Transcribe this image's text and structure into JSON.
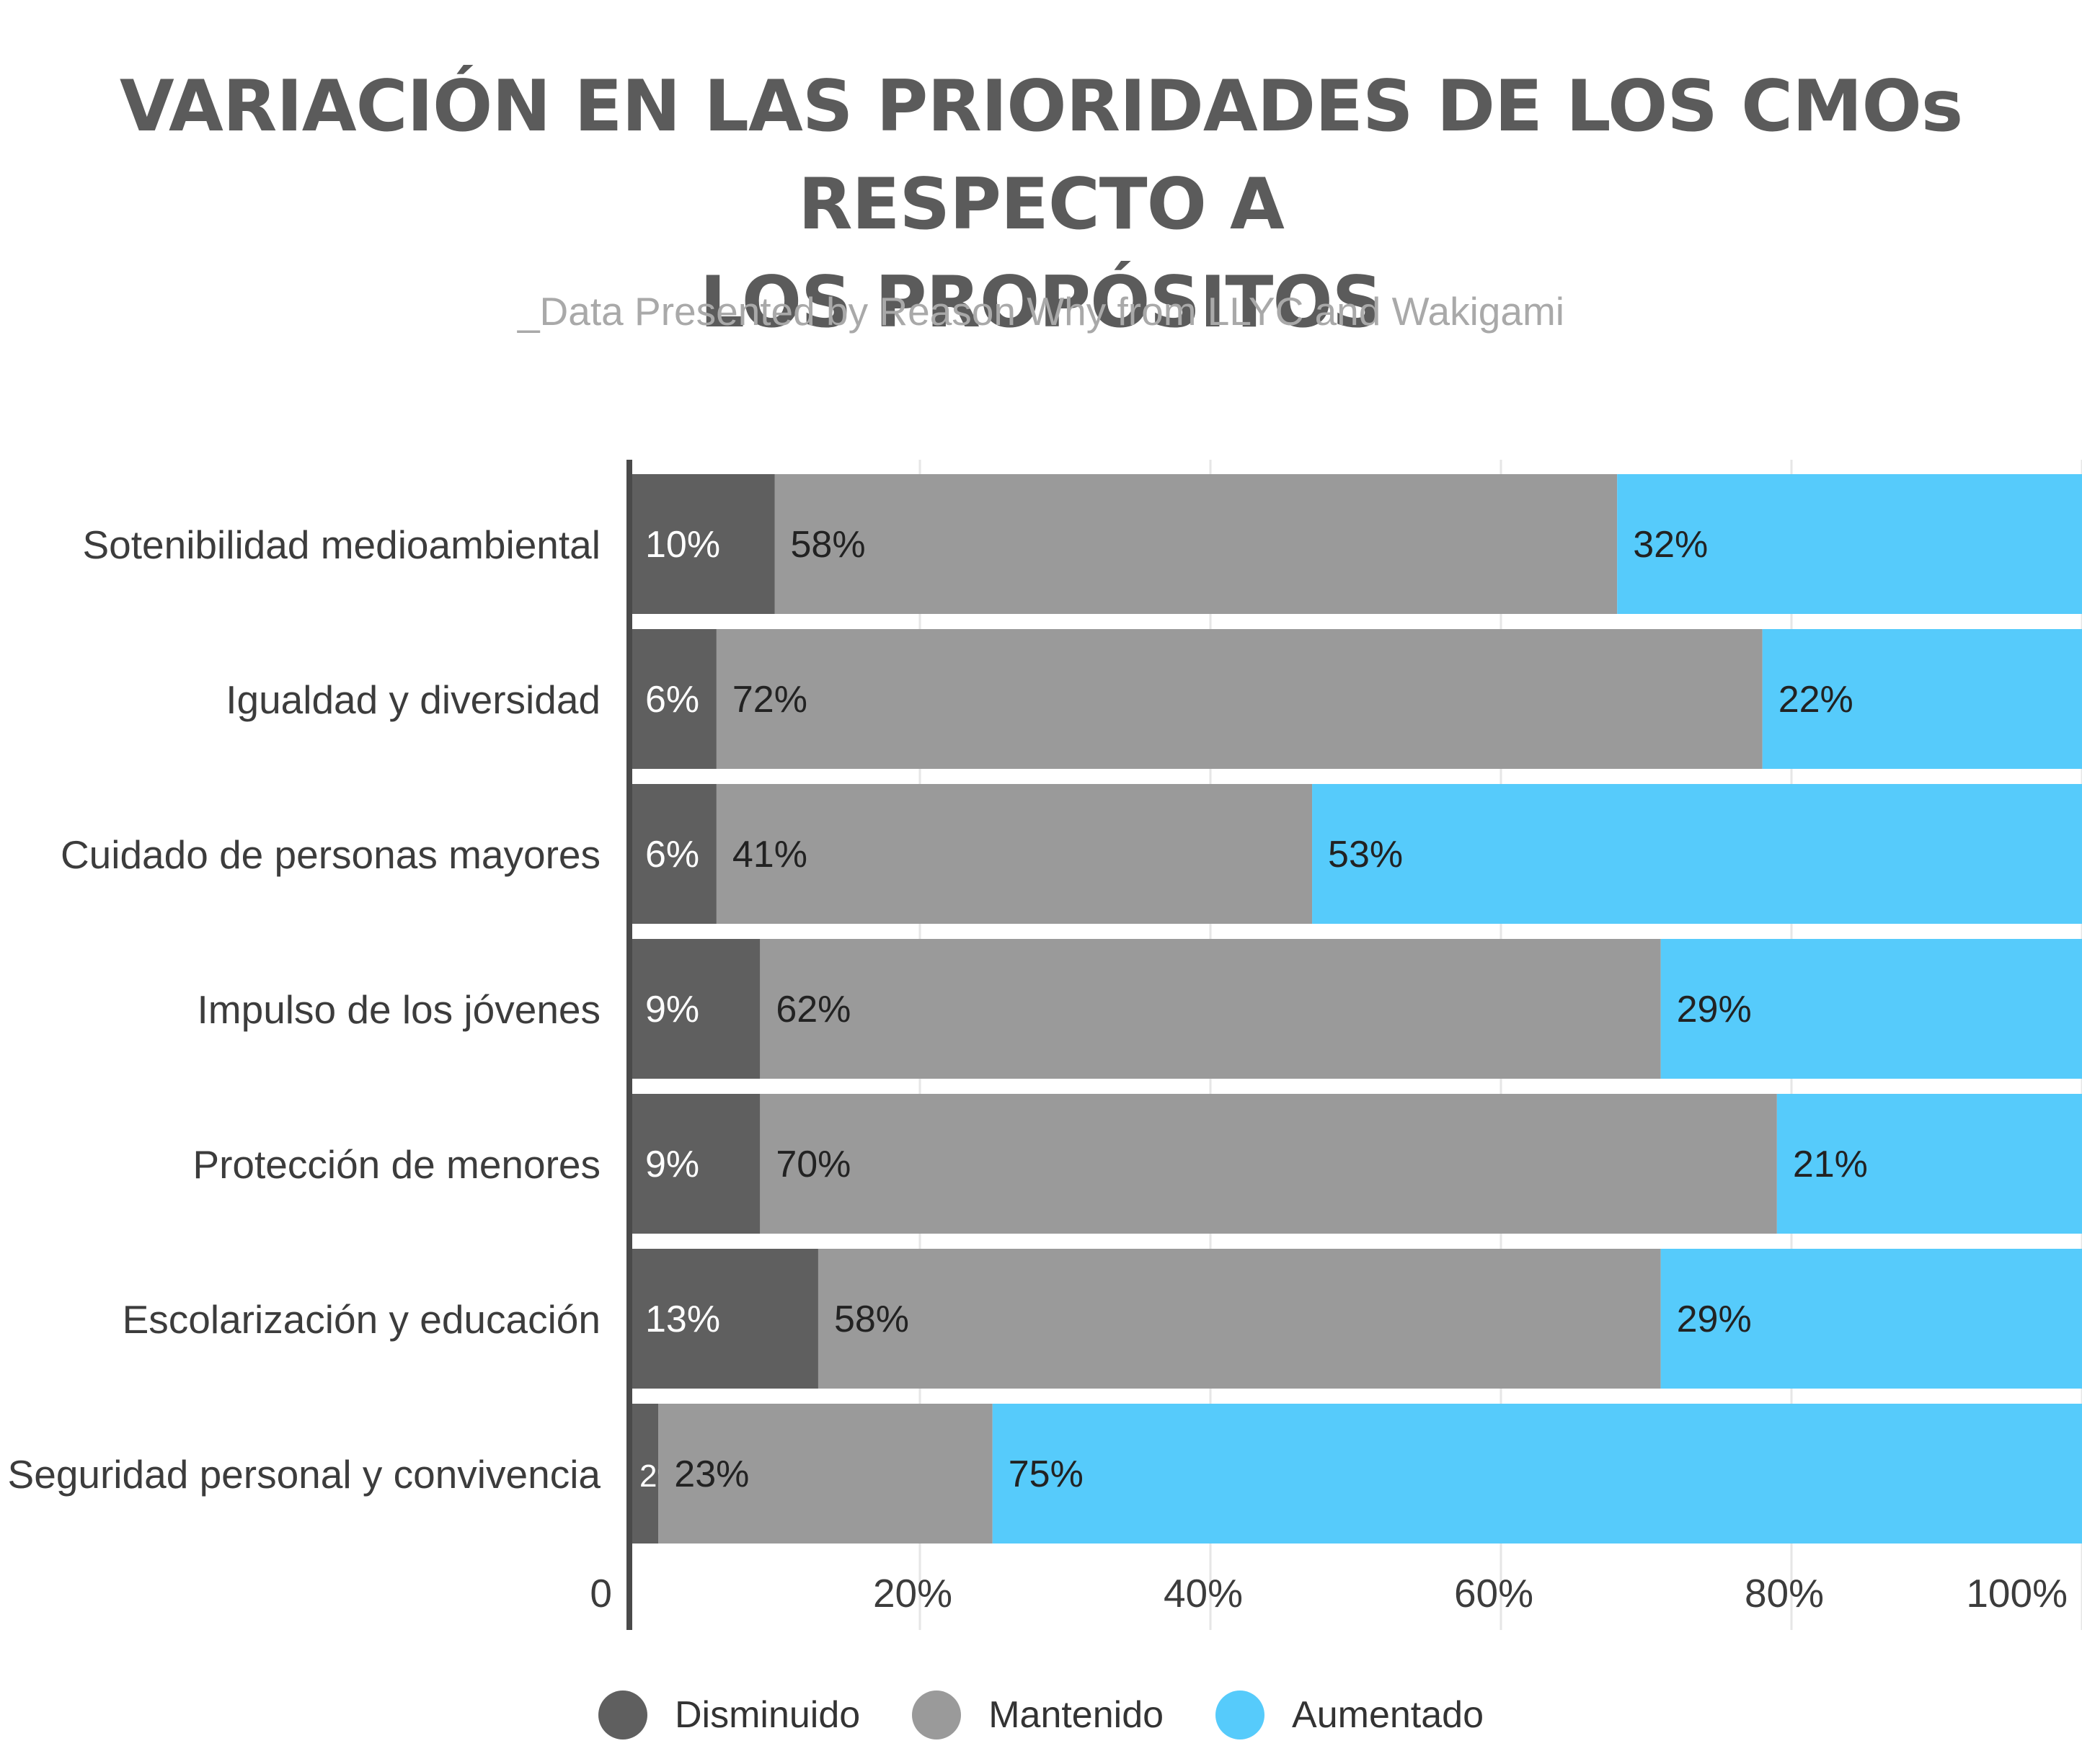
{
  "header": {
    "title_line1": "VARIACIÓN EN LAS PRIORIDADES DE LOS CMOs RESPECTO A",
    "title_line2": "LOS PROPÓSITOS",
    "subtitle": "_Data Presented by Reason Why from LLYC and Wakigami"
  },
  "colors": {
    "disminuido": "#5f5f5f",
    "mantenido": "#9a9a9a",
    "aumentado": "#56cbfb",
    "grid": "#e6e6e6",
    "axis": "#4a4a4a"
  },
  "chart_data": {
    "type": "bar",
    "orientation": "horizontal",
    "stacked": true,
    "categories": [
      "Sotenibilidad medioambiental",
      "Igualdad y diversidad",
      "Cuidado de personas mayores",
      "Impulso de los jóvenes",
      "Protección de menores",
      "Escolarización y educación",
      "Seguridad personal y convivencia"
    ],
    "series": [
      {
        "name": "Disminuido",
        "values": [
          10,
          6,
          6,
          9,
          9,
          13,
          2
        ],
        "labels": [
          "10%",
          "6%",
          "6%",
          "9%",
          "9%",
          "13%",
          "2%"
        ],
        "color": "#5f5f5f"
      },
      {
        "name": "Mantenido",
        "values": [
          58,
          72,
          41,
          62,
          70,
          58,
          23
        ],
        "labels": [
          "58%",
          "72%",
          "41%",
          "62%",
          "70%",
          "58%",
          "23%"
        ],
        "color": "#9a9a9a"
      },
      {
        "name": "Aumentado",
        "values": [
          32,
          22,
          53,
          29,
          21,
          29,
          75
        ],
        "labels": [
          "32%",
          "22%",
          "53%",
          "29%",
          "21%",
          "29%",
          "75%"
        ],
        "color": "#56cbfb"
      }
    ],
    "xlim": [
      0,
      100
    ],
    "x_ticks": [
      0,
      20,
      40,
      60,
      80,
      100
    ],
    "x_tick_labels": [
      "0",
      "20%",
      "40%",
      "60%",
      "80%",
      "100%"
    ],
    "grid": true,
    "legend_position": "bottom"
  }
}
